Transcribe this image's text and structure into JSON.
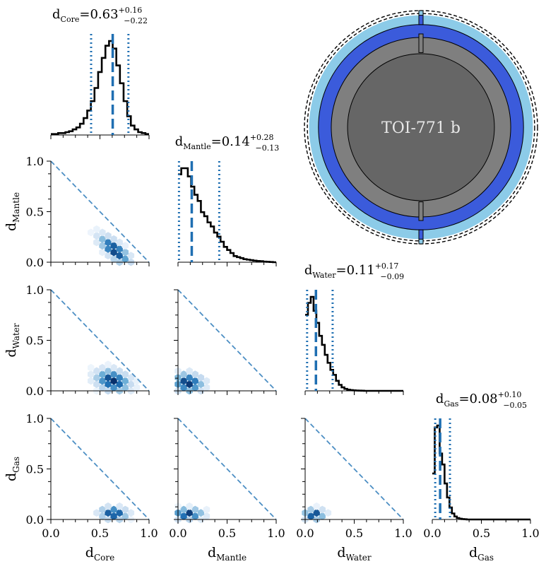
{
  "chart_data": {
    "type": "corner",
    "planet_label": "TOI-771 b",
    "params": [
      {
        "key": "core",
        "base": "d",
        "sub": "Core",
        "median": 0.63,
        "plus": "+0.16",
        "minus": "−0.22",
        "median_text": "0.63",
        "lo": 0.41,
        "hi": 0.79,
        "hist": [
          0.01,
          0.01,
          0.02,
          0.02,
          0.03,
          0.04,
          0.06,
          0.08,
          0.12,
          0.18,
          0.26,
          0.36,
          0.5,
          0.67,
          0.82,
          0.95,
          1.0,
          0.92,
          0.74,
          0.55,
          0.36,
          0.2,
          0.1,
          0.06,
          0.03,
          0.02,
          0.01
        ]
      },
      {
        "key": "mantle",
        "base": "d",
        "sub": "Mantle",
        "median": 0.14,
        "plus": "+0.28",
        "minus": "−0.13",
        "median_text": "0.14",
        "lo": 0.01,
        "hi": 0.42,
        "hist": [
          0.86,
          0.92,
          0.92,
          0.84,
          0.74,
          0.66,
          0.6,
          0.49,
          0.45,
          0.39,
          0.35,
          0.29,
          0.25,
          0.2,
          0.15,
          0.12,
          0.09,
          0.06,
          0.05,
          0.04,
          0.03,
          0.025,
          0.02,
          0.015,
          0.012,
          0.01,
          0.006,
          0.004,
          0.002,
          0.0
        ]
      },
      {
        "key": "water",
        "base": "d",
        "sub": "Water",
        "median": 0.11,
        "plus": "+0.17",
        "minus": "−0.09",
        "median_text": "0.11",
        "lo": 0.02,
        "hi": 0.28,
        "hist": [
          0.76,
          0.88,
          0.94,
          0.8,
          0.68,
          0.55,
          0.46,
          0.36,
          0.28,
          0.21,
          0.16,
          0.1,
          0.06,
          0.035,
          0.02,
          0.012,
          0.008,
          0.005,
          0.003,
          0.002,
          0.001,
          0.0,
          0.0,
          0.0,
          0.0,
          0.0,
          0.0,
          0.0,
          0.0,
          0.0,
          0.0,
          0.0,
          0.0,
          0.0,
          0.0
        ]
      },
      {
        "key": "gas",
        "base": "d",
        "sub": "Gas",
        "median": 0.08,
        "plus": "+0.10",
        "minus": "−0.05",
        "median_text": "0.08",
        "lo": 0.03,
        "hi": 0.18,
        "hist": [
          0.46,
          0.92,
          0.94,
          0.66,
          0.55,
          0.36,
          0.22,
          0.12,
          0.06,
          0.03,
          0.015,
          0.008,
          0.004,
          0.002,
          0.0,
          0.0,
          0.0,
          0.0,
          0.0,
          0.0,
          0.0,
          0.0,
          0.0,
          0.0,
          0.0,
          0.0,
          0.0,
          0.0,
          0.0,
          0.0,
          0.0,
          0.0,
          0.0,
          0.0,
          0.0,
          0.0,
          0.0,
          0.0,
          0.0,
          0.0
        ]
      }
    ],
    "axis_range": [
      0.0,
      1.0
    ],
    "x_ticks": [
      "0.0",
      "0.5",
      "1.0"
    ],
    "y_ticks": [
      "0.0",
      "0.5",
      "1.0"
    ],
    "constraint_line": "x + y = 1",
    "colors": {
      "line": "#000000",
      "median": "#1f6fb2",
      "diag": "#4d8fc4",
      "core": "#666666",
      "mantle": "#7f7f7f",
      "water": "#3b5bdb",
      "gas": "#8ccbe8"
    },
    "scatter": [
      {
        "x": "core",
        "y": "mantle",
        "cx": 0.65,
        "cy": 0.12,
        "sx": 0.1,
        "sy": 0.09,
        "rho": -0.75
      },
      {
        "x": "core",
        "y": "water",
        "cx": 0.63,
        "cy": 0.1,
        "sx": 0.11,
        "sy": 0.07,
        "rho": -0.25
      },
      {
        "x": "mantle",
        "y": "water",
        "cx": 0.1,
        "cy": 0.08,
        "sx": 0.1,
        "sy": 0.06,
        "rho": -0.1
      },
      {
        "x": "core",
        "y": "gas",
        "cx": 0.64,
        "cy": 0.06,
        "sx": 0.09,
        "sy": 0.04,
        "rho": -0.1
      },
      {
        "x": "mantle",
        "y": "gas",
        "cx": 0.1,
        "cy": 0.055,
        "sx": 0.1,
        "sy": 0.035,
        "rho": 0.0
      },
      {
        "x": "water",
        "y": "gas",
        "cx": 0.09,
        "cy": 0.05,
        "sx": 0.07,
        "sy": 0.035,
        "rho": 0.05
      }
    ],
    "structure_layers": [
      {
        "name": "core",
        "outer": 0.63
      },
      {
        "name": "mantle",
        "outer": 0.77
      },
      {
        "name": "water",
        "outer": 0.88
      },
      {
        "name": "gas",
        "outer": 0.96
      }
    ]
  }
}
